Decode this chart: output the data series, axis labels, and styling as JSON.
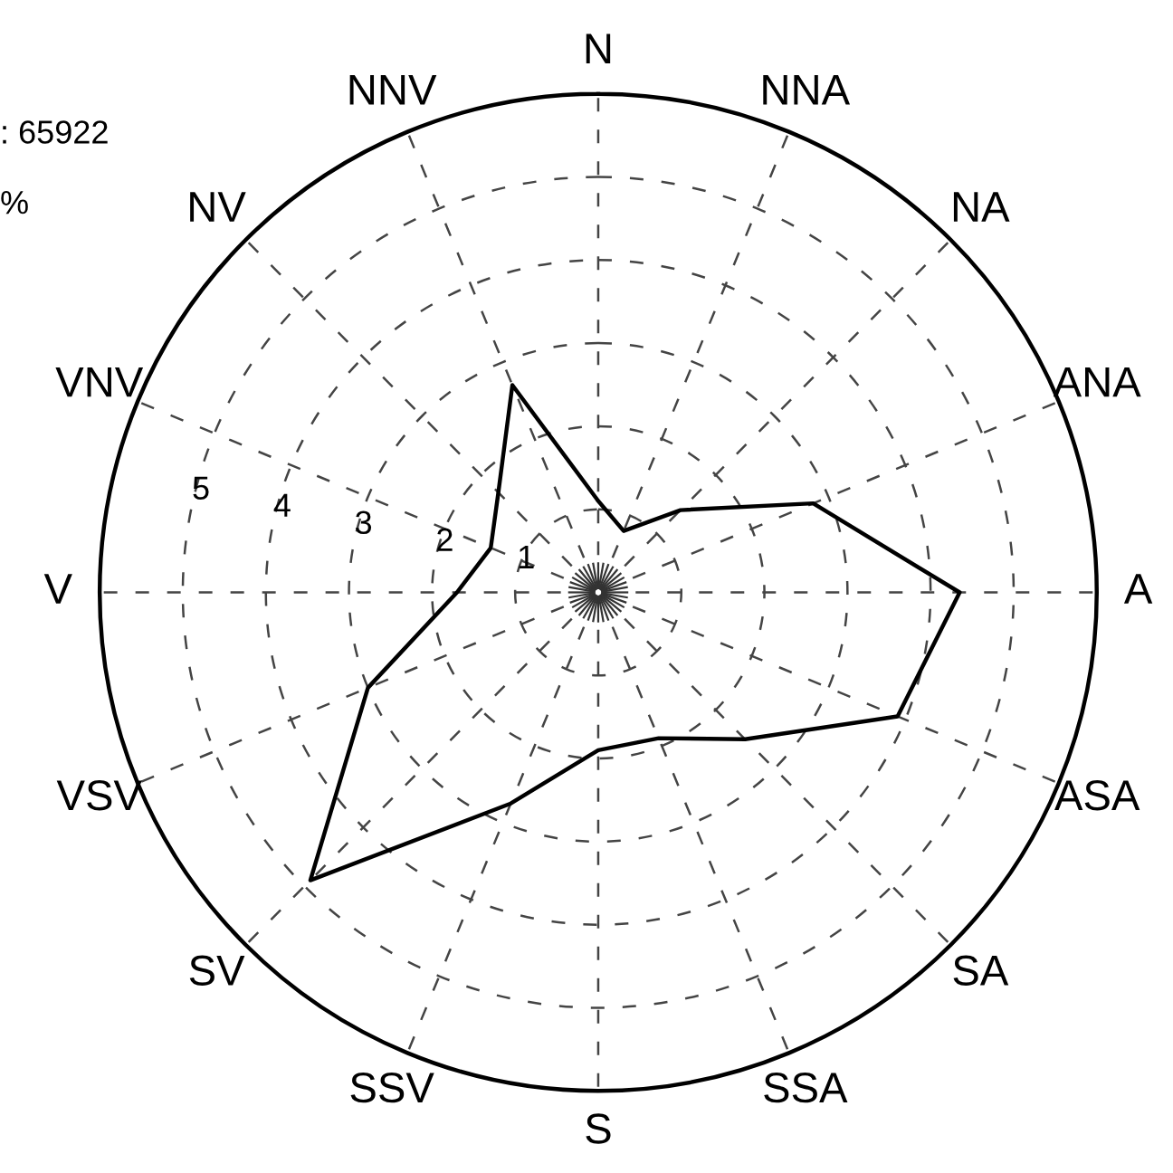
{
  "chart_data": {
    "type": "radar",
    "categories": [
      "N",
      "NNA",
      "NA",
      "ANA",
      "A",
      "ASA",
      "SA",
      "SSA",
      "S",
      "SSV",
      "SV",
      "VSV",
      "V",
      "VNV",
      "NV",
      "NNV"
    ],
    "series": [
      {
        "color": "#000000",
        "values": [
          1.1,
          0.8,
          1.4,
          2.8,
          4.35,
          3.9,
          2.5,
          1.9,
          1.9,
          2.75,
          4.9,
          3.0,
          1.7,
          1.4,
          1.7,
          2.7
        ]
      }
    ],
    "ylim": [
      0,
      6
    ],
    "yticks": [
      1,
      2,
      3,
      4,
      5
    ],
    "grid": true,
    "line_style": "solid",
    "marker": "none",
    "annotations": [
      ": 65922",
      "%"
    ]
  }
}
